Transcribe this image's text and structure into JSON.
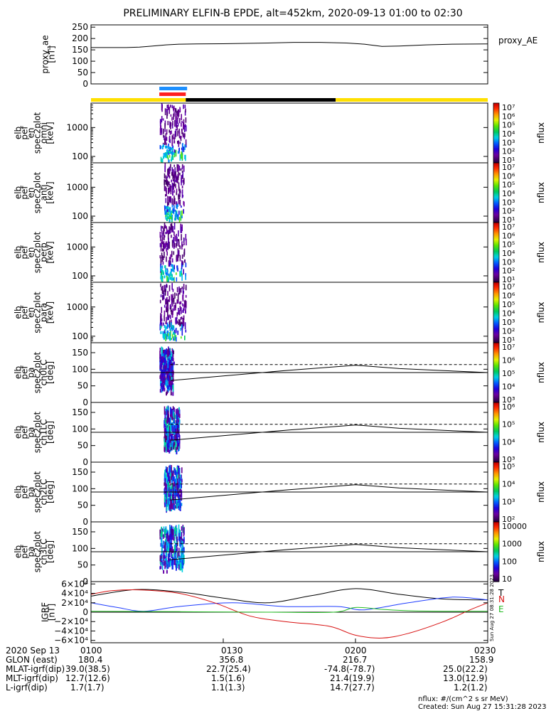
{
  "title": "PRELIMINARY ELFIN-B EPDE, alt=452km, 2020-09-13 01:00 to 02:30",
  "x_range_minutes": [
    0,
    90
  ],
  "ticks": [
    "0100",
    "0130",
    "0200",
    "0230"
  ],
  "tick_minutes": [
    0,
    30,
    60,
    90
  ],
  "colors": {
    "yellow_bar": "#ffe000",
    "black_bar": "#000000",
    "blue_mark": "#1e90ff",
    "red_mark": "#ff2020",
    "igrf_black": "#000000",
    "igrf_blue": "#1e3cff",
    "igrf_red": "#d81010",
    "igrf_green": "#22bb22"
  },
  "orbit_bar": {
    "segments": [
      {
        "from": 0,
        "to": 21.5,
        "color": "yellow"
      },
      {
        "from": 21.5,
        "to": 55.5,
        "color": "black"
      },
      {
        "from": 55.5,
        "to": 90,
        "color": "yellow"
      }
    ],
    "blue_mark": [
      15.5,
      21.8
    ],
    "red_mark": [
      15.5,
      21.5
    ]
  },
  "chart_data": [
    {
      "type": "line",
      "name": "proxy_ae",
      "ylabel": [
        "proxy_ae",
        "[nT]"
      ],
      "right_label": "proxy_AE",
      "ylim": [
        0,
        260
      ],
      "yticks": [
        0,
        50,
        100,
        150,
        200,
        250
      ],
      "x": [
        0,
        8,
        11,
        14,
        17,
        20,
        24,
        30,
        40,
        46,
        52,
        58,
        62,
        66,
        70,
        76,
        82,
        90
      ],
      "y": [
        160,
        160,
        162,
        167,
        172,
        175,
        176,
        177,
        180,
        183,
        183,
        180,
        175,
        165,
        167,
        172,
        175,
        176
      ]
    },
    {
      "type": "heatmap",
      "ylabel": [
        "elb",
        "pef",
        "en",
        "spec2plot",
        "omni",
        "[keV]"
      ],
      "yaxis": "log",
      "ylim": [
        60,
        7000
      ],
      "yticks": [
        100,
        1000
      ],
      "ytick_labels": [
        "100",
        "1000"
      ],
      "cb_type": "log",
      "cb_range": [
        10,
        10000000
      ],
      "cb_ticks": [
        "10⁷",
        "10⁶",
        "10⁵",
        "10⁴",
        "10³",
        "10²",
        "10¹"
      ],
      "cb_label": "nflux",
      "activity": [
        15.5,
        21.5
      ],
      "seed": 11
    },
    {
      "type": "heatmap",
      "ylabel": [
        "elb",
        "pef",
        "en",
        "spec2plot",
        "anti",
        "[keV]"
      ],
      "yaxis": "log",
      "ylim": [
        60,
        7000
      ],
      "yticks": [
        100,
        1000
      ],
      "ytick_labels": [
        "100",
        "1000"
      ],
      "cb_type": "log",
      "cb_range": [
        10,
        10000000
      ],
      "cb_ticks": [
        "10⁷",
        "10⁶",
        "10⁵",
        "10⁴",
        "10³",
        "10²",
        "10¹"
      ],
      "cb_label": "nflux",
      "activity": [
        16.5,
        21.0
      ],
      "seed": 23
    },
    {
      "type": "heatmap",
      "ylabel": [
        "elb",
        "pef",
        "en",
        "spec2plot",
        "perp",
        "[keV]"
      ],
      "yaxis": "log",
      "ylim": [
        60,
        7000
      ],
      "yticks": [
        100,
        1000
      ],
      "ytick_labels": [
        "100",
        "1000"
      ],
      "cb_type": "log",
      "cb_range": [
        10,
        10000000
      ],
      "cb_ticks": [
        "10⁷",
        "10⁶",
        "10⁵",
        "10⁴",
        "10³",
        "10²",
        "10¹"
      ],
      "cb_label": "nflux",
      "activity": [
        15.5,
        21.5
      ],
      "seed": 37
    },
    {
      "type": "heatmap",
      "ylabel": [
        "elb",
        "pef",
        "en",
        "spec2plot",
        "para",
        "[keV]"
      ],
      "yaxis": "log",
      "ylim": [
        60,
        7000
      ],
      "yticks": [
        100,
        1000
      ],
      "ytick_labels": [
        "100",
        "1000"
      ],
      "cb_type": "log",
      "cb_range": [
        10,
        10000000
      ],
      "cb_ticks": [
        "10⁷",
        "10⁶",
        "10⁵",
        "10⁴",
        "10³",
        "10²",
        "10¹"
      ],
      "cb_label": "nflux",
      "activity": [
        15.5,
        21.5
      ],
      "seed": 41
    },
    {
      "type": "heatmap",
      "ylabel": [
        "elb",
        "pef",
        "pa",
        "spec2plot",
        "ch0LC",
        "[deg]"
      ],
      "yaxis": "linear",
      "ylim": [
        0,
        180
      ],
      "yticks": [
        0,
        50,
        100,
        150
      ],
      "ytick_labels": [
        "0",
        "50",
        "100",
        "150"
      ],
      "cb_type": "log",
      "cb_range": [
        1000,
        10000000
      ],
      "cb_ticks": [
        "10⁷",
        "10⁶",
        "10⁵",
        "10⁴",
        "10³"
      ],
      "cb_label": "nflux",
      "activity": [
        15.5,
        18.5
      ],
      "seed": 53,
      "lc_x": [
        18,
        30,
        45,
        60,
        70,
        80,
        90
      ],
      "lc_y": [
        66,
        80,
        97,
        112,
        102,
        96,
        90
      ],
      "alc_y": 114,
      "hline": 90
    },
    {
      "type": "heatmap",
      "ylabel": [
        "elb",
        "pef",
        "pa",
        "spec2plot",
        "ch1LC",
        "[deg]"
      ],
      "yaxis": "linear",
      "ylim": [
        0,
        180
      ],
      "yticks": [
        0,
        50,
        100,
        150
      ],
      "ytick_labels": [
        "0",
        "50",
        "100",
        "150"
      ],
      "cb_type": "log",
      "cb_range": [
        1000,
        1000000
      ],
      "cb_ticks": [
        "10⁶",
        "10⁵",
        "10⁴",
        "10³"
      ],
      "cb_label": "nflux",
      "activity": [
        16.5,
        20.0
      ],
      "seed": 67,
      "lc_x": [
        18,
        30,
        45,
        60,
        70,
        80,
        90
      ],
      "lc_y": [
        66,
        80,
        97,
        112,
        102,
        96,
        90
      ],
      "alc_y": 114,
      "hline": 90
    },
    {
      "type": "heatmap",
      "ylabel": [
        "elb",
        "pef",
        "pa",
        "spec2plot",
        "ch2LC",
        "[deg]"
      ],
      "yaxis": "linear",
      "ylim": [
        0,
        180
      ],
      "yticks": [
        0,
        50,
        100,
        150
      ],
      "ytick_labels": [
        "0",
        "50",
        "100",
        "150"
      ],
      "cb_type": "log",
      "cb_range": [
        100,
        100000
      ],
      "cb_ticks": [
        "10⁵",
        "10⁴",
        "10³",
        "10²"
      ],
      "cb_label": "nflux",
      "activity": [
        16.5,
        20.5
      ],
      "seed": 79,
      "lc_x": [
        18,
        30,
        45,
        60,
        70,
        80,
        90
      ],
      "lc_y": [
        66,
        80,
        97,
        112,
        102,
        96,
        90
      ],
      "alc_y": 114,
      "hline": 90
    },
    {
      "type": "heatmap",
      "ylabel": [
        "elb",
        "pef",
        "pa",
        "spec2plot",
        "ch3LC",
        "[deg]"
      ],
      "yaxis": "linear",
      "ylim": [
        0,
        180
      ],
      "yticks": [
        0,
        50,
        100,
        150
      ],
      "ytick_labels": [
        "0",
        "50",
        "100",
        "150"
      ],
      "cb_type": "log",
      "cb_range": [
        10,
        10000
      ],
      "cb_ticks": [
        "10000",
        "1000",
        "100",
        "10"
      ],
      "cb_label": "nflux",
      "activity": [
        15.5,
        21.0
      ],
      "seed": 97,
      "lc_x": [
        18,
        30,
        45,
        60,
        70,
        80,
        90
      ],
      "lc_y": [
        66,
        80,
        97,
        112,
        102,
        96,
        90
      ],
      "alc_y": 114,
      "hline": 90
    },
    {
      "type": "line",
      "name": "igrf",
      "ylabel": [
        "IGRF",
        "[nT]"
      ],
      "ylim": [
        -65000,
        65000
      ],
      "yticks": [
        60000,
        40000,
        20000,
        0,
        -20000,
        -40000,
        -60000
      ],
      "ytick_labels": [
        "6×10⁴",
        "4×10⁴",
        "2×10⁴",
        "0",
        "−2×10⁴",
        "−4×10⁴",
        "−6×10⁴"
      ],
      "legend": [
        "T",
        "N",
        "E"
      ],
      "stamp": "Sun Aug 27 08:31:28 2023",
      "series": [
        {
          "color": "black",
          "x": [
            0,
            10,
            20,
            30,
            40,
            50,
            60,
            70,
            80,
            90
          ],
          "y": [
            34000,
            48000,
            43000,
            30000,
            20000,
            35000,
            50000,
            38000,
            28000,
            26000
          ]
        },
        {
          "color": "blue",
          "x": [
            0,
            6,
            12,
            20,
            32,
            44,
            56,
            62,
            72,
            82,
            90
          ],
          "y": [
            20000,
            10000,
            2000,
            12000,
            20000,
            12000,
            12000,
            5000,
            20000,
            32000,
            26000
          ]
        },
        {
          "color": "red",
          "x": [
            0,
            5,
            12,
            20,
            28,
            36,
            44,
            54,
            60,
            66,
            72,
            80,
            86,
            90
          ],
          "y": [
            38000,
            46000,
            47000,
            40000,
            20000,
            -8000,
            -20000,
            -30000,
            -49000,
            -55000,
            -45000,
            -20000,
            5000,
            20000
          ]
        },
        {
          "color": "green",
          "x": [
            0,
            20,
            40,
            55,
            60,
            66,
            72,
            80,
            90
          ],
          "y": [
            2000,
            1000,
            0,
            0,
            10000,
            6000,
            3000,
            2000,
            2000
          ]
        }
      ]
    }
  ],
  "footer": {
    "rows": [
      {
        "label": "2020 Sep 13",
        "values": [
          "0100",
          "0130",
          "0200",
          "0230"
        ]
      },
      {
        "label": "GLON (east)",
        "values": [
          "180.4",
          "356.8",
          "216.7",
          "158.9"
        ]
      },
      {
        "label": "MLAT-igrf(dip)",
        "values": [
          "39.0(38.5)",
          "22.7(25.4)",
          "-74.8(-78.7)",
          "25.0(22.2)"
        ]
      },
      {
        "label": "MLT-igrf(dip)",
        "values": [
          "12.7(12.6)",
          "1.5(1.6)",
          "21.4(19.9)",
          "13.0(12.9)"
        ]
      },
      {
        "label": "L-igrf(dip)",
        "values": [
          "1.7(1.7)",
          "1.1(1.3)",
          "14.7(27.7)",
          "1.2(1.2)"
        ]
      }
    ],
    "units_note": "nflux: #/(cm^2 s sr MeV)",
    "created": "Created: Sun Aug 27 15:31:28 2023"
  }
}
